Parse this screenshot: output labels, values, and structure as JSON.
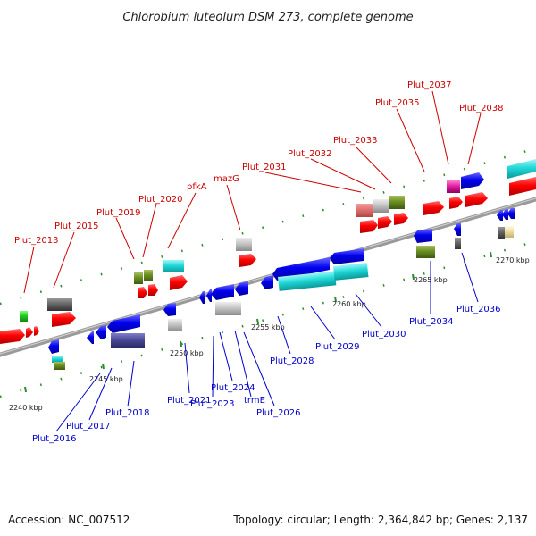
{
  "title": "Chlorobium luteolum DSM 273, complete genome",
  "accession": "Accession: NC_007512",
  "topology": "Topology: circular; Length: 2,364,842 bp; Genes: 2,137",
  "colors": {
    "forward_label": "#cc0000",
    "reverse_label": "#0000cc",
    "backbone": "#8c8c8c",
    "tick": "#2e8b2e"
  },
  "scale_labels": [
    "2240 kbp",
    "2245 kbp",
    "2250 kbp",
    "2255 kbp",
    "2260 kbp",
    "2265 kbp",
    "2270 kbp"
  ],
  "forward_labels": [
    "Plut_2013",
    "Plut_2015",
    "Plut_2019",
    "Plut_2020",
    "pfkA",
    "mazG",
    "Plut_2031",
    "Plut_2032",
    "Plut_2033",
    "Plut_2035",
    "Plut_2037",
    "Plut_2038"
  ],
  "reverse_labels": [
    "Plut_2016",
    "Plut_2017",
    "Plut_2018",
    "Plut_2021",
    "Plut_2023",
    "Plut_2024",
    "trmE",
    "Plut_2026",
    "Plut_2028",
    "Plut_2029",
    "Plut_2030",
    "Plut_2034",
    "Plut_2036"
  ]
}
